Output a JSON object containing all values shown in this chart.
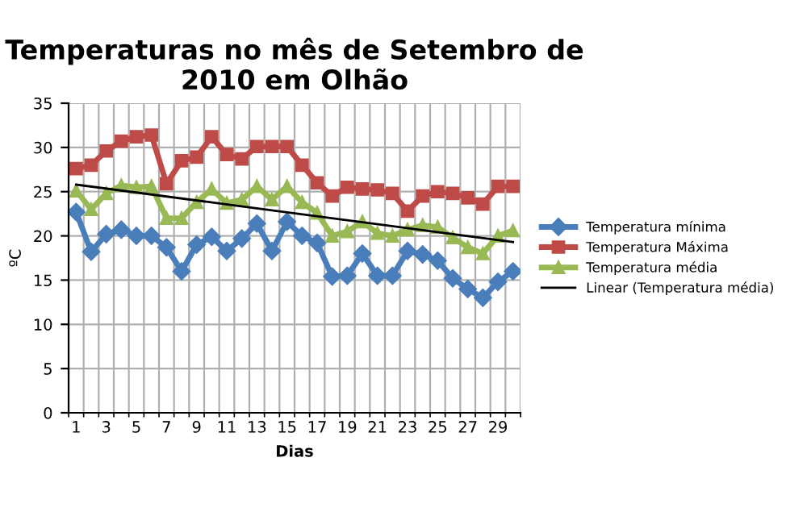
{
  "chart_data": {
    "type": "line",
    "title": "Temperaturas no mês de Setembro de 2010 em Olhão",
    "xlabel": "Dias",
    "ylabel": "ºC",
    "categories": [
      "1",
      null,
      "3",
      null,
      "5",
      null,
      "7",
      null,
      "9",
      null,
      "11",
      null,
      "13",
      null,
      "15",
      null,
      "17",
      null,
      "19",
      null,
      "21",
      null,
      "23",
      null,
      "25",
      null,
      "27",
      null,
      "29",
      null
    ],
    "ylim": [
      0,
      35
    ],
    "yticks": [
      0,
      5,
      10,
      15,
      20,
      25,
      30,
      35
    ],
    "grid": true,
    "legend": "right",
    "series": [
      {
        "name": "Temperatura mínima",
        "color": "#4a7ebb",
        "marker": "diamond",
        "values": [
          22.7,
          18.2,
          20.2,
          20.7,
          20,
          20,
          18.7,
          16,
          19,
          19.9,
          18.3,
          19.7,
          21.4,
          18.3,
          21.6,
          20,
          19.2,
          15.4,
          15.5,
          18,
          15.5,
          15.5,
          18.3,
          17.9,
          17.2,
          15.2,
          14,
          13,
          14.8,
          16
        ]
      },
      {
        "name": "Temperatura Máxima",
        "color": "#be4b48",
        "marker": "square",
        "values": [
          27.6,
          28,
          29.6,
          30.7,
          31.2,
          31.4,
          25.9,
          28.5,
          28.9,
          31.2,
          29.2,
          28.7,
          30.1,
          30.1,
          30.1,
          28,
          26,
          24.5,
          25.5,
          25.3,
          25.2,
          24.8,
          22.8,
          24.5,
          25,
          24.8,
          24.3,
          23.6,
          25.6,
          25.6
        ]
      },
      {
        "name": "Temperatura média",
        "color": "#98b954",
        "marker": "triangle",
        "values": [
          25.1,
          23,
          24.8,
          25.7,
          25.5,
          25.6,
          22,
          22,
          23.8,
          25.3,
          23.7,
          24.1,
          25.6,
          24.1,
          25.6,
          23.8,
          22.6,
          20,
          20.5,
          21.6,
          20.3,
          20,
          20.7,
          21.2,
          21,
          19.8,
          18.7,
          18,
          20,
          20.6
        ]
      },
      {
        "name": "Linear (Temperatura média)",
        "color": "#000000",
        "marker": "none",
        "values": [
          25.8,
          null,
          null,
          null,
          null,
          null,
          null,
          null,
          null,
          null,
          null,
          null,
          null,
          null,
          null,
          null,
          null,
          null,
          null,
          null,
          null,
          null,
          null,
          null,
          null,
          null,
          null,
          null,
          null,
          19.3
        ]
      }
    ]
  }
}
